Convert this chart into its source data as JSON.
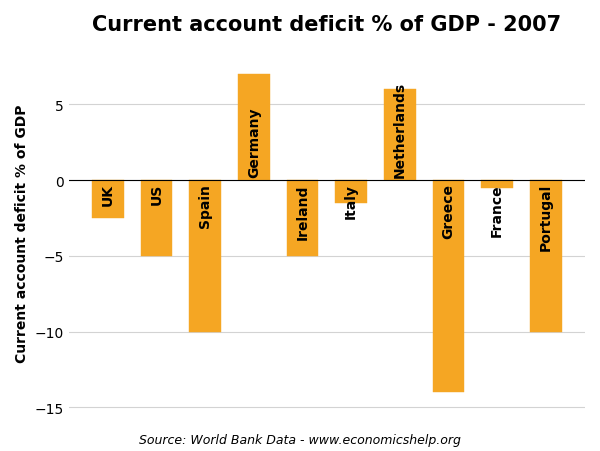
{
  "categories": [
    "UK",
    "US",
    "Spain",
    "Germany",
    "Ireland",
    "Italy",
    "Netherlands",
    "Greece",
    "France",
    "Portugal"
  ],
  "values": [
    -2.5,
    -5.0,
    -10.0,
    7.0,
    -5.0,
    -1.5,
    6.0,
    -14.0,
    -0.5,
    -10.0
  ],
  "bar_color": "#F5A623",
  "bar_edgecolor": "#F5A623",
  "title": "Current account deficit % of GDP - 2007",
  "ylabel": "Current account deficit % of GDP",
  "ylim": [
    -16,
    9
  ],
  "yticks": [
    -15,
    -10,
    -5,
    0,
    5
  ],
  "source_text": "Source: World Bank Data - www.economicshelp.org",
  "background_color": "#ffffff",
  "title_fontsize": 15,
  "ylabel_fontsize": 10,
  "tick_label_fontsize": 10,
  "label_fontsize": 10,
  "bar_width": 0.65
}
